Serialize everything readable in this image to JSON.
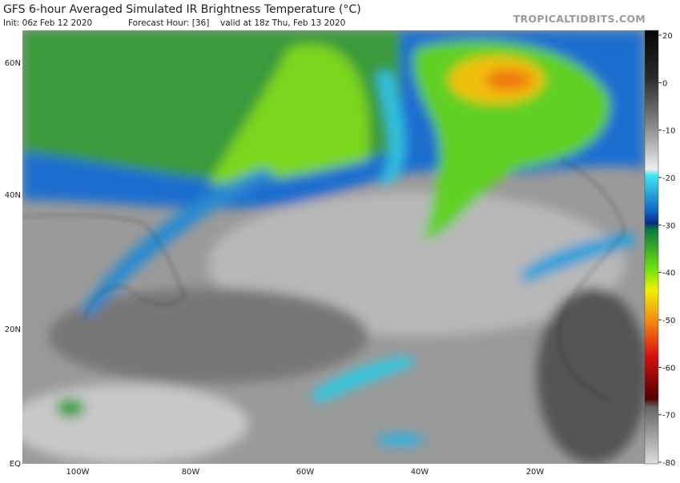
{
  "header": {
    "title": "GFS 6-hour Averaged Simulated IR Brightness Temperature (°C)",
    "init": "Init: 06z Feb 12 2020",
    "forecast_hour": "Forecast Hour: [36]",
    "valid": "valid at 18z Thu, Feb 13 2020",
    "credit": "TROPICALTIDBITS.COM"
  },
  "map": {
    "lat_labels": [
      "60N",
      "40N",
      "20N",
      "EQ"
    ],
    "lon_labels": [
      "100W",
      "80W",
      "60W",
      "40W",
      "20W"
    ]
  },
  "colorbar": {
    "ticks": [
      20,
      0,
      -10,
      -20,
      -30,
      -40,
      -50,
      -60,
      -70,
      -80
    ]
  }
}
